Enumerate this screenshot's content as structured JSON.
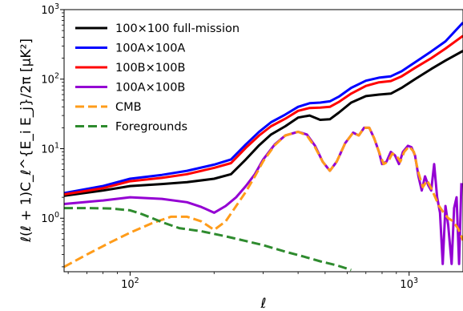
{
  "chart_data": {
    "type": "line",
    "xlabel": "ℓ",
    "ylabel": "ℓ(ℓ + 1)C_ℓ^{E_i E_j}/2π  [μK²]",
    "xscale": "log",
    "yscale": "log",
    "xlim": [
      58,
      1560
    ],
    "ylim": [
      0.17,
      1000
    ],
    "xticks": [
      {
        "value": 100,
        "mantissa": "10",
        "exp": "2"
      },
      {
        "value": 1000,
        "mantissa": "10",
        "exp": "3"
      }
    ],
    "yticks": [
      {
        "value": 1,
        "mantissa": "10",
        "exp": "0"
      },
      {
        "value": 10,
        "mantissa": "10",
        "exp": "1"
      },
      {
        "value": 100,
        "mantissa": "10",
        "exp": "2"
      },
      {
        "value": 1000,
        "mantissa": "10",
        "exp": "3"
      }
    ],
    "grid": false,
    "legend_position": "top-left",
    "series": [
      {
        "name": "100×100 full-mission",
        "color": "#000000",
        "dash": "solid",
        "points": [
          [
            58,
            2.1
          ],
          [
            80,
            2.5
          ],
          [
            100,
            2.9
          ],
          [
            130,
            3.1
          ],
          [
            160,
            3.3
          ],
          [
            200,
            3.7
          ],
          [
            230,
            4.3
          ],
          [
            260,
            7.0
          ],
          [
            290,
            11.2
          ],
          [
            320,
            16.0
          ],
          [
            360,
            21.0
          ],
          [
            400,
            28.0
          ],
          [
            440,
            30.0
          ],
          [
            480,
            26.0
          ],
          [
            520,
            26.5
          ],
          [
            560,
            33.0
          ],
          [
            620,
            46.0
          ],
          [
            700,
            57.0
          ],
          [
            780,
            60.0
          ],
          [
            860,
            62.0
          ],
          [
            940,
            75.0
          ],
          [
            1050,
            100.0
          ],
          [
            1200,
            140.0
          ],
          [
            1350,
            185.0
          ],
          [
            1560,
            255.0
          ]
        ]
      },
      {
        "name": "100A×100A",
        "color": "#0000ff",
        "dash": "solid",
        "points": [
          [
            58,
            2.3
          ],
          [
            80,
            2.9
          ],
          [
            100,
            3.7
          ],
          [
            130,
            4.2
          ],
          [
            160,
            4.8
          ],
          [
            200,
            5.9
          ],
          [
            230,
            7.0
          ],
          [
            260,
            11.5
          ],
          [
            290,
            17.5
          ],
          [
            320,
            24.0
          ],
          [
            360,
            31.0
          ],
          [
            400,
            40.0
          ],
          [
            440,
            45.0
          ],
          [
            480,
            46.0
          ],
          [
            520,
            48.0
          ],
          [
            560,
            56.0
          ],
          [
            620,
            75.0
          ],
          [
            700,
            95.0
          ],
          [
            780,
            105.0
          ],
          [
            860,
            110.0
          ],
          [
            940,
            130.0
          ],
          [
            1050,
            175.0
          ],
          [
            1200,
            250.0
          ],
          [
            1350,
            350.0
          ],
          [
            1560,
            650.0
          ]
        ]
      },
      {
        "name": "100B×100B",
        "color": "#ff0000",
        "dash": "solid",
        "points": [
          [
            58,
            2.2
          ],
          [
            80,
            2.7
          ],
          [
            100,
            3.4
          ],
          [
            130,
            3.8
          ],
          [
            160,
            4.3
          ],
          [
            200,
            5.3
          ],
          [
            230,
            6.2
          ],
          [
            260,
            10.3
          ],
          [
            290,
            15.5
          ],
          [
            320,
            21.0
          ],
          [
            360,
            27.0
          ],
          [
            400,
            35.0
          ],
          [
            440,
            38.5
          ],
          [
            480,
            39.0
          ],
          [
            520,
            40.0
          ],
          [
            560,
            47.0
          ],
          [
            620,
            62.0
          ],
          [
            700,
            80.0
          ],
          [
            780,
            90.0
          ],
          [
            860,
            94.0
          ],
          [
            940,
            110.0
          ],
          [
            1050,
            145.0
          ],
          [
            1200,
            200.0
          ],
          [
            1350,
            275.0
          ],
          [
            1560,
            420.0
          ]
        ]
      },
      {
        "name": "100A×100B",
        "color": "#9400d3",
        "dash": "solid",
        "points": [
          [
            58,
            1.6
          ],
          [
            80,
            1.8
          ],
          [
            100,
            2.0
          ],
          [
            130,
            1.9
          ],
          [
            160,
            1.7
          ],
          [
            180,
            1.45
          ],
          [
            200,
            1.2
          ],
          [
            220,
            1.5
          ],
          [
            240,
            2.0
          ],
          [
            260,
            2.9
          ],
          [
            280,
            4.3
          ],
          [
            300,
            7.0
          ],
          [
            330,
            11.5
          ],
          [
            360,
            15.5
          ],
          [
            400,
            17.5
          ],
          [
            430,
            16.0
          ],
          [
            460,
            11.0
          ],
          [
            490,
            6.5
          ],
          [
            520,
            4.8
          ],
          [
            550,
            6.5
          ],
          [
            590,
            12.0
          ],
          [
            630,
            17.0
          ],
          [
            660,
            15.5
          ],
          [
            690,
            20.0
          ],
          [
            720,
            20.0
          ],
          [
            750,
            14.0
          ],
          [
            780,
            9.0
          ],
          [
            800,
            6.0
          ],
          [
            830,
            6.5
          ],
          [
            860,
            9.0
          ],
          [
            890,
            8.0
          ],
          [
            920,
            6.0
          ],
          [
            950,
            9.0
          ],
          [
            990,
            11.0
          ],
          [
            1020,
            10.5
          ],
          [
            1050,
            8.0
          ],
          [
            1080,
            4.0
          ],
          [
            1110,
            2.5
          ],
          [
            1140,
            4.0
          ],
          [
            1170,
            3.0
          ],
          [
            1200,
            2.5
          ],
          [
            1230,
            6.0
          ],
          [
            1260,
            2.0
          ],
          [
            1290,
            1.2
          ],
          [
            1320,
            0.22
          ],
          [
            1350,
            1.5
          ],
          [
            1380,
            0.8
          ],
          [
            1420,
            0.22
          ],
          [
            1450,
            1.4
          ],
          [
            1480,
            2.0
          ],
          [
            1510,
            0.22
          ],
          [
            1540,
            3.2
          ]
        ]
      },
      {
        "name": "CMB",
        "color": "#ff9c1a",
        "dash": "dashed",
        "points": [
          [
            58,
            0.2
          ],
          [
            70,
            0.3
          ],
          [
            85,
            0.45
          ],
          [
            100,
            0.62
          ],
          [
            120,
            0.85
          ],
          [
            140,
            1.05
          ],
          [
            160,
            1.05
          ],
          [
            180,
            0.9
          ],
          [
            200,
            0.68
          ],
          [
            220,
            0.9
          ],
          [
            240,
            1.5
          ],
          [
            260,
            2.4
          ],
          [
            280,
            4.0
          ],
          [
            300,
            6.6
          ],
          [
            330,
            11.2
          ],
          [
            360,
            15.5
          ],
          [
            400,
            17.5
          ],
          [
            430,
            15.5
          ],
          [
            460,
            10.5
          ],
          [
            490,
            6.5
          ],
          [
            520,
            4.8
          ],
          [
            550,
            6.5
          ],
          [
            590,
            12.0
          ],
          [
            630,
            17.0
          ],
          [
            660,
            15.5
          ],
          [
            690,
            20.0
          ],
          [
            720,
            20.0
          ],
          [
            750,
            14.0
          ],
          [
            780,
            9.0
          ],
          [
            810,
            6.0
          ],
          [
            840,
            6.5
          ],
          [
            870,
            8.5
          ],
          [
            900,
            8.0
          ],
          [
            930,
            6.5
          ],
          [
            960,
            9.0
          ],
          [
            1000,
            10.8
          ],
          [
            1040,
            9.0
          ],
          [
            1080,
            4.5
          ],
          [
            1120,
            2.8
          ],
          [
            1160,
            3.5
          ],
          [
            1200,
            2.7
          ],
          [
            1240,
            2.0
          ],
          [
            1280,
            1.5
          ],
          [
            1330,
            1.2
          ],
          [
            1380,
            1.0
          ],
          [
            1440,
            0.9
          ],
          [
            1500,
            0.7
          ],
          [
            1560,
            0.48
          ]
        ]
      },
      {
        "name": "Foregrounds",
        "color": "#2e8b2e",
        "dash": "dashed",
        "points": [
          [
            58,
            1.4
          ],
          [
            70,
            1.4
          ],
          [
            85,
            1.38
          ],
          [
            100,
            1.3
          ],
          [
            110,
            1.15
          ],
          [
            120,
            1.0
          ],
          [
            130,
            0.88
          ],
          [
            150,
            0.72
          ],
          [
            180,
            0.65
          ],
          [
            220,
            0.55
          ],
          [
            260,
            0.47
          ],
          [
            300,
            0.41
          ],
          [
            360,
            0.33
          ],
          [
            420,
            0.28
          ],
          [
            480,
            0.24
          ],
          [
            550,
            0.21
          ],
          [
            620,
            0.18
          ]
        ]
      }
    ]
  }
}
